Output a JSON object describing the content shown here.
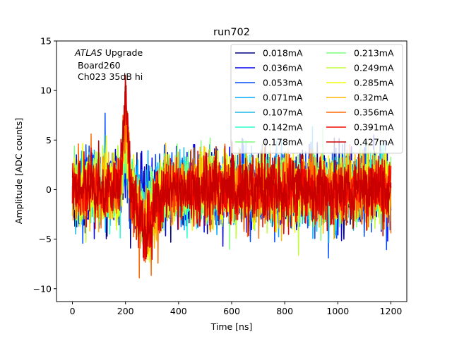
{
  "chart_data": {
    "type": "line",
    "title": "run702",
    "xlabel": "Time [ns]",
    "ylabel": "Amplitude [ADC counts]",
    "xlim": [
      -60,
      1260
    ],
    "ylim": [
      -11.3,
      15
    ],
    "xticks": [
      0,
      200,
      400,
      600,
      800,
      1000,
      1200
    ],
    "yticks": [
      -10,
      -5,
      0,
      5,
      10,
      15
    ],
    "xtick_labels": [
      "0",
      "200",
      "400",
      "600",
      "800",
      "1000",
      "1200"
    ],
    "ytick_labels": [
      "−10",
      "−5",
      "0",
      "5",
      "10",
      "15"
    ],
    "annotation": {
      "line1_italic": "ATLAS",
      "line1_rest": " Upgrade",
      "line2": "Board260",
      "line3": "Ch023 35dB hi"
    },
    "legend_position": "top-right",
    "legend_columns": 2,
    "series": [
      {
        "name": "0.018mA",
        "color": "#00007f",
        "pulse_peak": 2.0,
        "pulse_undershoot": -1.0,
        "noise": 2.8
      },
      {
        "name": "0.036mA",
        "color": "#0000f1",
        "pulse_peak": 2.5,
        "pulse_undershoot": -1.2,
        "noise": 3.0
      },
      {
        "name": "0.053mA",
        "color": "#004cff",
        "pulse_peak": 3.0,
        "pulse_undershoot": -1.5,
        "noise": 2.8
      },
      {
        "name": "0.071mA",
        "color": "#00a8ff",
        "pulse_peak": 3.5,
        "pulse_undershoot": -1.8,
        "noise": 2.7
      },
      {
        "name": "0.107mA",
        "color": "#1fb8e6",
        "pulse_peak": 4.0,
        "pulse_undershoot": -2.0,
        "noise": 2.6
      },
      {
        "name": "0.142mA",
        "color": "#29ffce",
        "pulse_peak": 4.5,
        "pulse_undershoot": -2.3,
        "noise": 2.5
      },
      {
        "name": "0.178mA",
        "color": "#7dff7a",
        "pulse_peak": 5.0,
        "pulse_undershoot": -2.6,
        "noise": 2.5
      },
      {
        "name": "0.213mA",
        "color": "#7fff7f",
        "pulse_peak": 5.5,
        "pulse_undershoot": -2.9,
        "noise": 2.5
      },
      {
        "name": "0.249mA",
        "color": "#c1ff36",
        "pulse_peak": 6.0,
        "pulse_undershoot": -3.2,
        "noise": 2.6
      },
      {
        "name": "0.285mA",
        "color": "#f1fc06",
        "pulse_peak": 6.5,
        "pulse_undershoot": -3.5,
        "noise": 2.8
      },
      {
        "name": "0.32mA",
        "color": "#ffb900",
        "pulse_peak": 7.0,
        "pulse_undershoot": -3.8,
        "noise": 2.7
      },
      {
        "name": "0.356mA",
        "color": "#ff6800",
        "pulse_peak": 7.5,
        "pulse_undershoot": -4.1,
        "noise": 2.7
      },
      {
        "name": "0.391mA",
        "color": "#f10800",
        "pulse_peak": 8.0,
        "pulse_undershoot": -4.4,
        "noise": 2.6
      },
      {
        "name": "0.427mA",
        "color": "#c80000",
        "pulse_peak": 8.5,
        "pulse_undershoot": -4.7,
        "noise": 2.6
      }
    ],
    "time_range_ns": [
      0,
      1200
    ],
    "sample_step_ns": 1.5,
    "pulse_time_ns": 200
  }
}
